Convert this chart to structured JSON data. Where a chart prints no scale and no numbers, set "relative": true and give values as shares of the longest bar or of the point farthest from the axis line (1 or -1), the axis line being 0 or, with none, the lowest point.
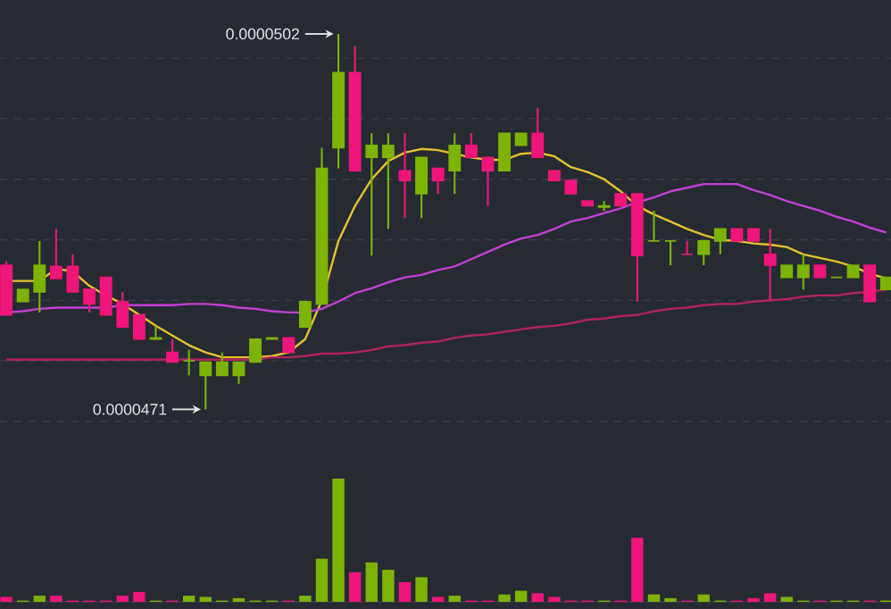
{
  "chart_data": [
    {
      "type": "candlestick",
      "categories": [
        null,
        null,
        null,
        null,
        null,
        null,
        null,
        null,
        null,
        null,
        null,
        null,
        null,
        null,
        null,
        null,
        null,
        null,
        null,
        null,
        null,
        null,
        null,
        null,
        null,
        null,
        null,
        null,
        null,
        null,
        null,
        null,
        null,
        null,
        null,
        null,
        null,
        null,
        null,
        null,
        null,
        null,
        null,
        null,
        null,
        null,
        null,
        null,
        null,
        null,
        null,
        null,
        null,
        null
      ],
      "ohlc": [
        [
          4.829e-05,
          4.832e-05,
          4.788e-05,
          4.788e-05
        ],
        [
          4.799e-05,
          4.809e-05,
          4.799e-05,
          4.809e-05
        ],
        [
          4.807e-05,
          4.849e-05,
          4.79e-05,
          4.829e-05
        ],
        [
          4.828e-05,
          4.859e-05,
          4.818e-05,
          4.818e-05
        ],
        [
          4.828e-05,
          4.838e-05,
          4.807e-05,
          4.807e-05
        ],
        [
          4.809e-05,
          4.809e-05,
          4.79e-05,
          4.797e-05
        ],
        [
          4.819e-05,
          4.819e-05,
          4.788e-05,
          4.788e-05
        ],
        [
          4.799e-05,
          4.807e-05,
          4.778e-05,
          4.778e-05
        ],
        [
          4.788e-05,
          4.788e-05,
          4.768e-05,
          4.768e-05
        ],
        [
          4.768e-05,
          4.779e-05,
          4.768e-05,
          4.769e-05
        ],
        [
          4.757e-05,
          4.768e-05,
          4.749e-05,
          4.749e-05
        ],
        [
          4.75e-05,
          4.759e-05,
          4.738e-05,
          4.75e-05
        ],
        [
          4.738e-05,
          4.749e-05,
          4.71e-05,
          4.749e-05
        ],
        [
          4.738e-05,
          4.757e-05,
          4.738e-05,
          4.749e-05
        ],
        [
          4.738e-05,
          4.749e-05,
          4.731e-05,
          4.749e-05
        ],
        [
          4.749e-05,
          4.768e-05,
          4.749e-05,
          4.768e-05
        ],
        [
          4.768e-05,
          4.769e-05,
          4.768e-05,
          4.769e-05
        ],
        [
          4.769e-05,
          4.769e-05,
          4.757e-05,
          4.757e-05
        ],
        [
          4.778e-05,
          4.799e-05,
          4.778e-05,
          4.799e-05
        ],
        [
          4.797e-05,
          4.926e-05,
          4.797e-05,
          4.909e-05
        ],
        [
          4.926e-05,
          5.02e-05,
          4.909e-05,
          4.988e-05
        ],
        [
          4.988e-05,
          5.01e-05,
          4.907e-05,
          4.907e-05
        ],
        [
          4.918e-05,
          4.938e-05,
          4.837e-05,
          4.928e-05
        ],
        [
          4.918e-05,
          4.938e-05,
          4.859e-05,
          4.928e-05
        ],
        [
          4.907e-05,
          4.938e-05,
          4.868e-05,
          4.899e-05
        ],
        [
          4.888e-05,
          4.918e-05,
          4.868e-05,
          4.918e-05
        ],
        [
          4.909e-05,
          4.909e-05,
          4.888e-05,
          4.899e-05
        ],
        [
          4.907e-05,
          4.938e-05,
          4.888e-05,
          4.928e-05
        ],
        [
          4.928e-05,
          4.938e-05,
          4.918e-05,
          4.918e-05
        ],
        [
          4.918e-05,
          4.918e-05,
          4.878e-05,
          4.907e-05
        ],
        [
          4.907e-05,
          4.938e-05,
          4.907e-05,
          4.938e-05
        ],
        [
          4.928e-05,
          4.938e-05,
          4.928e-05,
          4.938e-05
        ],
        [
          4.938e-05,
          4.959e-05,
          4.918e-05,
          4.918e-05
        ],
        [
          4.907e-05,
          4.907e-05,
          4.899e-05,
          4.899e-05
        ],
        [
          4.899e-05,
          4.899e-05,
          4.888e-05,
          4.888e-05
        ],
        [
          4.882e-05,
          4.882e-05,
          4.878e-05,
          4.878e-05
        ],
        [
          4.877e-05,
          4.882e-05,
          4.874e-05,
          4.878e-05
        ],
        [
          4.888e-05,
          4.888e-05,
          4.878e-05,
          4.878e-05
        ],
        [
          4.888e-05,
          4.888e-05,
          4.799e-05,
          4.837e-05
        ],
        [
          4.849e-05,
          4.874e-05,
          4.849e-05,
          4.849e-05
        ],
        [
          4.849e-05,
          4.849e-05,
          4.829e-05,
          4.849e-05
        ],
        [
          4.838e-05,
          4.849e-05,
          4.838e-05,
          4.838e-05
        ],
        [
          4.838e-05,
          4.849e-05,
          4.829e-05,
          4.849e-05
        ],
        [
          4.849e-05,
          4.859e-05,
          4.838e-05,
          4.859e-05
        ],
        [
          4.859e-05,
          4.859e-05,
          4.849e-05,
          4.849e-05
        ],
        [
          4.859e-05,
          4.859e-05,
          4.849e-05,
          4.849e-05
        ],
        [
          4.838e-05,
          4.859e-05,
          4.8e-05,
          4.829e-05
        ],
        [
          4.819e-05,
          4.829e-05,
          4.819e-05,
          4.829e-05
        ],
        [
          4.819e-05,
          4.838e-05,
          4.809e-05,
          4.829e-05
        ],
        [
          4.829e-05,
          4.829e-05,
          4.819e-05,
          4.819e-05
        ],
        [
          4.819e-05,
          4.819e-05,
          4.819e-05,
          4.819e-05
        ],
        [
          4.819e-05,
          4.829e-05,
          4.819e-05,
          4.829e-05
        ],
        [
          4.829e-05,
          4.829e-05,
          4.799e-05,
          4.799e-05
        ],
        [
          4.809e-05,
          4.819e-05,
          4.809e-05,
          4.819e-05
        ]
      ],
      "colors": [
        "#f0157a",
        "#7cb305",
        "#7cb305",
        "#f0157a",
        "#f0157a",
        "#f0157a",
        "#f0157a",
        "#f0157a",
        "#f0157a",
        "#7cb305",
        "#f0157a",
        "#7cb305",
        "#7cb305",
        "#7cb305",
        "#7cb305",
        "#7cb305",
        "#7cb305",
        "#f0157a",
        "#7cb305",
        "#7cb305",
        "#7cb305",
        "#f0157a",
        "#7cb305",
        "#7cb305",
        "#f0157a",
        "#7cb305",
        "#f0157a",
        "#7cb305",
        "#f0157a",
        "#f0157a",
        "#7cb305",
        "#7cb305",
        "#f0157a",
        "#f0157a",
        "#f0157a",
        "#f0157a",
        "#7cb305",
        "#f0157a",
        "#f0157a",
        "#7cb305",
        "#7cb305",
        "#f0157a",
        "#7cb305",
        "#7cb305",
        "#f0157a",
        "#f0157a",
        "#f0157a",
        "#7cb305",
        "#7cb305",
        "#f0157a",
        "#7cb305",
        "#7cb305",
        "#f0157a",
        "#7cb305"
      ],
      "series": [
        {
          "type": "line",
          "color": "#e8c22c",
          "values": [
            4.816e-05,
            4.816e-05,
            4.816e-05,
            4.826e-05,
            4.824e-05,
            4.812e-05,
            4.804e-05,
            4.797e-05,
            4.788e-05,
            4.779e-05,
            4.771e-05,
            4.763e-05,
            4.757e-05,
            4.753e-05,
            4.753e-05,
            4.753e-05,
            4.754e-05,
            4.757e-05,
            4.768e-05,
            4.8e-05,
            4.849e-05,
            4.878e-05,
            4.9e-05,
            4.915e-05,
            4.922e-05,
            4.925e-05,
            4.924e-05,
            4.921e-05,
            4.918e-05,
            4.916e-05,
            4.916e-05,
            4.921e-05,
            4.922e-05,
            4.919e-05,
            4.91e-05,
            4.906e-05,
            4.9e-05,
            4.89e-05,
            4.878e-05,
            4.871e-05,
            4.865e-05,
            4.859e-05,
            4.854e-05,
            4.85e-05,
            4.849e-05,
            4.847e-05,
            4.846e-05,
            4.844e-05,
            4.838e-05,
            4.835e-05,
            4.832e-05,
            4.828e-05,
            4.822e-05,
            4.818e-05
          ]
        },
        {
          "type": "line",
          "color": "#c43fd4",
          "values": [
            4.79e-05,
            4.791e-05,
            4.793e-05,
            4.794e-05,
            4.794e-05,
            4.794e-05,
            4.794e-05,
            4.796e-05,
            4.796e-05,
            4.796e-05,
            4.796e-05,
            4.797e-05,
            4.797e-05,
            4.796e-05,
            4.794e-05,
            4.793e-05,
            4.791e-05,
            4.79e-05,
            4.79e-05,
            4.793e-05,
            4.799e-05,
            4.806e-05,
            4.81e-05,
            4.815e-05,
            4.819e-05,
            4.821e-05,
            4.825e-05,
            4.828e-05,
            4.834e-05,
            4.84e-05,
            4.846e-05,
            4.851e-05,
            4.854e-05,
            4.859e-05,
            4.865e-05,
            4.868e-05,
            4.872e-05,
            4.876e-05,
            4.881e-05,
            4.885e-05,
            4.89e-05,
            4.893e-05,
            4.896e-05,
            4.896e-05,
            4.896e-05,
            4.891e-05,
            4.887e-05,
            4.882e-05,
            4.878e-05,
            4.874e-05,
            4.869e-05,
            4.865e-05,
            4.86e-05,
            4.856e-05
          ]
        },
        {
          "type": "line",
          "color": "#b3245e",
          "values": [
            4.751e-05,
            4.751e-05,
            4.751e-05,
            4.751e-05,
            4.751e-05,
            4.751e-05,
            4.751e-05,
            4.751e-05,
            4.751e-05,
            4.751e-05,
            4.751e-05,
            4.751e-05,
            4.751e-05,
            4.751e-05,
            4.751e-05,
            4.751e-05,
            4.753e-05,
            4.753e-05,
            4.754e-05,
            4.756e-05,
            4.756e-05,
            4.757e-05,
            4.759e-05,
            4.762e-05,
            4.763e-05,
            4.765e-05,
            4.766e-05,
            4.769e-05,
            4.771e-05,
            4.772e-05,
            4.774e-05,
            4.776e-05,
            4.778e-05,
            4.779e-05,
            4.781e-05,
            4.784e-05,
            4.785e-05,
            4.787e-05,
            4.788e-05,
            4.791e-05,
            4.793e-05,
            4.794e-05,
            4.796e-05,
            4.797e-05,
            4.797e-05,
            4.799e-05,
            4.8e-05,
            4.801e-05,
            4.803e-05,
            4.804e-05,
            4.804e-05,
            4.806e-05,
            4.807e-05,
            4.809e-05
          ]
        }
      ],
      "yticks": [
        {
          "value": 4.7e-05,
          "label": null
        },
        {
          "value": 4.75e-05,
          "label": null
        },
        {
          "value": 4.8e-05,
          "label": null
        },
        {
          "value": 4.85e-05,
          "label": null
        },
        {
          "value": 4.9e-05,
          "label": null
        },
        {
          "value": 4.95e-05,
          "label": null
        },
        {
          "value": 5e-05,
          "label": null
        }
      ],
      "grid": "y",
      "annotations": [
        "0.0000502",
        "0.0000471"
      ]
    },
    {
      "type": "bar",
      "relative": true,
      "categories": [
        null,
        null,
        null,
        null,
        null,
        null,
        null,
        null,
        null,
        null,
        null,
        null,
        null,
        null,
        null,
        null,
        null,
        null,
        null,
        null,
        null,
        null,
        null,
        null,
        null,
        null,
        null,
        null,
        null,
        null,
        null,
        null,
        null,
        null,
        null,
        null,
        null,
        null,
        null,
        null,
        null,
        null,
        null,
        null,
        null,
        null,
        null,
        null,
        null,
        null,
        null,
        null,
        null,
        null
      ],
      "values": [
        0.04,
        0.01,
        0.05,
        0.05,
        0.01,
        0.01,
        0.01,
        0.05,
        0.08,
        0.01,
        0.01,
        0.05,
        0.04,
        0.01,
        0.03,
        0.01,
        0.01,
        0.01,
        0.05,
        0.35,
        1,
        0.24,
        0.32,
        0.26,
        0.16,
        0.2,
        0.04,
        0.05,
        0.01,
        0.01,
        0.06,
        0.09,
        0.07,
        0.04,
        0.01,
        0.01,
        0.01,
        0.01,
        0.52,
        0.06,
        0.03,
        0.01,
        0.06,
        0.01,
        0.01,
        0.03,
        0.07,
        0.04,
        0.01,
        0.01,
        0.01,
        0.01,
        0.01,
        0.01
      ],
      "colors": [
        "#f0157a",
        "#7cb305",
        "#7cb305",
        "#f0157a",
        "#f0157a",
        "#f0157a",
        "#f0157a",
        "#f0157a",
        "#f0157a",
        "#7cb305",
        "#f0157a",
        "#7cb305",
        "#7cb305",
        "#7cb305",
        "#7cb305",
        "#7cb305",
        "#7cb305",
        "#f0157a",
        "#7cb305",
        "#7cb305",
        "#7cb305",
        "#f0157a",
        "#7cb305",
        "#7cb305",
        "#f0157a",
        "#7cb305",
        "#f0157a",
        "#7cb305",
        "#f0157a",
        "#f0157a",
        "#7cb305",
        "#7cb305",
        "#f0157a",
        "#f0157a",
        "#f0157a",
        "#f0157a",
        "#7cb305",
        "#f0157a",
        "#f0157a",
        "#7cb305",
        "#7cb305",
        "#f0157a",
        "#7cb305",
        "#7cb305",
        "#f0157a",
        "#f0157a",
        "#f0157a",
        "#7cb305",
        "#7cb305",
        "#f0157a",
        "#7cb305",
        "#7cb305",
        "#f0157a",
        "#7cb305"
      ]
    }
  ]
}
